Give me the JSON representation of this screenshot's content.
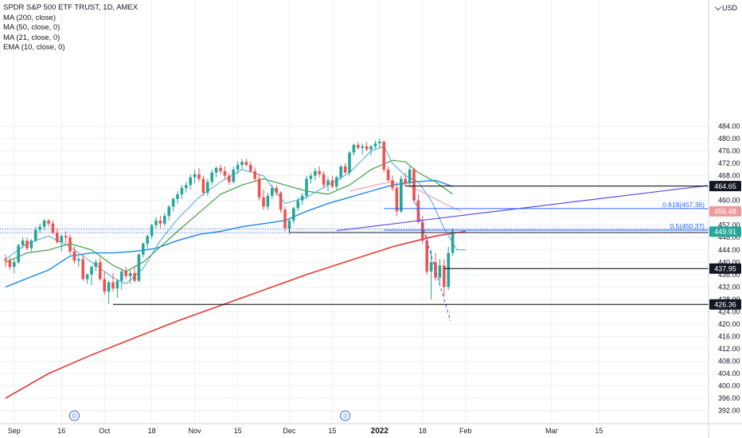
{
  "legend": {
    "title": "SPDR S&P 500 ETF TRUST, 1D, AMEX",
    "indicators": [
      "MA (200, close)",
      "MA (50, close, 0)",
      "MA (21, close, 0)",
      "EMA (10, close, 0)"
    ]
  },
  "currency": "USD",
  "colors": {
    "up": "#26a69a",
    "down": "#ef5350",
    "ma200": "#e53935",
    "ma50": "#1e88e5",
    "ma21": "#43a047",
    "ema10": "#4aa8d8",
    "trendline": "#5c4ee6",
    "fib": "#2962ff",
    "hline": "#000000",
    "grid": "#eef0f3"
  },
  "chart_data": {
    "type": "candlestick",
    "symbol": "SPY",
    "timeframe": "1D",
    "ylim": [
      390,
      488
    ],
    "y_ticks": [
      "392.00",
      "396.00",
      "400.00",
      "404.00",
      "408.00",
      "412.00",
      "416.00",
      "420.00",
      "424.00",
      "428.00",
      "432.00",
      "436.00",
      "440.00",
      "444.00",
      "448.00",
      "452.00",
      "456.00",
      "460.00",
      "464.00",
      "468.00",
      "472.00",
      "476.00",
      "480.00",
      "484.00"
    ],
    "x_ticks": [
      {
        "label": "Sep",
        "day": 2,
        "bold": false
      },
      {
        "label": "16",
        "day": 13,
        "bold": false
      },
      {
        "label": "Oct",
        "day": 23,
        "bold": false
      },
      {
        "label": "18",
        "day": 34,
        "bold": false
      },
      {
        "label": "Nov",
        "day": 44,
        "bold": false
      },
      {
        "label": "15",
        "day": 54,
        "bold": false
      },
      {
        "label": "Dec",
        "day": 66,
        "bold": false
      },
      {
        "label": "15",
        "day": 76,
        "bold": false
      },
      {
        "label": "2022",
        "day": 87,
        "bold": true
      },
      {
        "label": "18",
        "day": 97,
        "bold": false
      },
      {
        "label": "Feb",
        "day": 107,
        "bold": false
      },
      {
        "label": "Mar",
        "day": 127,
        "bold": false
      },
      {
        "label": "15",
        "day": 138,
        "bold": false
      }
    ],
    "candles": [
      [
        441,
        442.5,
        438.5,
        440.5
      ],
      [
        440.5,
        441.5,
        437.5,
        438.5
      ],
      [
        438.5,
        441,
        436.5,
        440
      ],
      [
        440,
        446,
        439.5,
        445.5
      ],
      [
        445.5,
        448,
        444.5,
        447
      ],
      [
        447,
        448,
        444,
        444.5
      ],
      [
        444.5,
        447.5,
        443.5,
        447
      ],
      [
        447,
        451.5,
        446.5,
        450.5
      ],
      [
        450.5,
        452.5,
        449.5,
        451.5
      ],
      [
        451.5,
        454,
        450.5,
        453.5
      ],
      [
        453.5,
        454,
        451.5,
        452.5
      ],
      [
        452.5,
        453.5,
        449,
        449.5
      ],
      [
        449.5,
        451,
        446,
        446.5
      ],
      [
        446.5,
        449,
        443.5,
        448.5
      ],
      [
        448.5,
        450,
        446,
        448
      ],
      [
        448,
        449,
        442.5,
        443.5
      ],
      [
        443.5,
        445,
        439.5,
        440.5
      ],
      [
        440.5,
        442,
        438.5,
        441
      ],
      [
        441,
        442.5,
        434,
        434.5
      ],
      [
        434.5,
        436.5,
        433,
        436
      ],
      [
        436,
        439,
        432.5,
        438.5
      ],
      [
        438.5,
        441,
        437,
        440
      ],
      [
        440,
        441.5,
        434,
        434.5
      ],
      [
        434.5,
        437,
        429.5,
        430.5
      ],
      [
        430.5,
        434,
        426.5,
        433.5
      ],
      [
        433.5,
        436.5,
        430.5,
        431.5
      ],
      [
        431.5,
        434.5,
        428.5,
        434
      ],
      [
        434,
        437.5,
        431,
        437
      ],
      [
        437,
        438.5,
        434.5,
        435.5
      ],
      [
        435.5,
        437.5,
        433,
        436.5
      ],
      [
        436.5,
        439,
        433.5,
        434
      ],
      [
        434,
        443,
        433.5,
        442.5
      ],
      [
        442.5,
        446.5,
        441.5,
        446
      ],
      [
        446,
        449,
        444.5,
        448.5
      ],
      [
        448.5,
        452.5,
        447.5,
        452
      ],
      [
        452,
        454.5,
        451,
        453.5
      ],
      [
        453.5,
        455,
        451,
        452.5
      ],
      [
        452.5,
        456,
        451.5,
        455
      ],
      [
        455,
        458.5,
        453.5,
        458
      ],
      [
        458,
        461,
        456.5,
        460.5
      ],
      [
        460.5,
        463,
        459,
        462
      ],
      [
        462,
        465,
        460.5,
        464
      ],
      [
        464,
        466,
        462.5,
        465
      ],
      [
        465,
        468.5,
        463.5,
        467.5
      ],
      [
        467.5,
        470,
        465.5,
        468.5
      ],
      [
        468.5,
        470.5,
        466,
        467
      ],
      [
        467,
        468,
        461.5,
        462.5
      ],
      [
        462.5,
        467,
        461.5,
        466
      ],
      [
        466,
        470,
        465,
        469
      ],
      [
        469,
        471,
        467.5,
        470.5
      ],
      [
        470.5,
        471.5,
        468.5,
        469.5
      ],
      [
        469.5,
        471,
        467,
        468
      ],
      [
        468,
        469,
        465,
        466
      ],
      [
        466,
        471,
        465.5,
        470
      ],
      [
        470,
        472.5,
        468.5,
        471.5
      ],
      [
        471.5,
        473.5,
        470,
        472.5
      ],
      [
        472.5,
        473.5,
        471,
        471.5
      ],
      [
        471.5,
        472.5,
        469,
        469.5
      ],
      [
        469.5,
        470.5,
        466,
        467
      ],
      [
        467,
        468.5,
        460,
        461
      ],
      [
        461,
        463.5,
        457,
        458
      ],
      [
        458,
        462.5,
        457,
        461.5
      ],
      [
        461.5,
        465,
        460.5,
        464
      ],
      [
        464,
        465,
        461.5,
        462.5
      ],
      [
        462.5,
        463,
        456,
        457
      ],
      [
        457,
        458,
        450,
        451
      ],
      [
        451,
        454,
        449,
        453.5
      ],
      [
        453.5,
        458,
        452.5,
        457.5
      ],
      [
        457.5,
        461,
        456.5,
        460
      ],
      [
        460,
        462.5,
        458.5,
        461.5
      ],
      [
        461.5,
        468,
        460.5,
        467
      ],
      [
        467,
        469,
        465.5,
        468
      ],
      [
        468,
        470.5,
        466.5,
        469.5
      ],
      [
        469.5,
        471,
        467.5,
        468.5
      ],
      [
        468.5,
        469.5,
        464,
        465
      ],
      [
        465,
        467.5,
        463,
        466.5
      ],
      [
        466.5,
        468,
        464,
        464.5
      ],
      [
        464.5,
        468,
        463.5,
        467.5
      ],
      [
        467.5,
        471.5,
        466.5,
        471
      ],
      [
        471,
        472,
        468.5,
        469
      ],
      [
        469,
        476,
        468,
        475.5
      ],
      [
        475.5,
        478.5,
        474.5,
        478
      ],
      [
        478,
        479,
        476.5,
        477
      ],
      [
        477,
        478.5,
        475,
        477.5
      ],
      [
        477.5,
        479,
        476,
        476.5
      ],
      [
        476.5,
        478,
        474.5,
        477.5
      ],
      [
        477.5,
        479.5,
        476.5,
        478.5
      ],
      [
        478.5,
        480,
        477,
        479
      ],
      [
        479,
        479.5,
        469,
        470
      ],
      [
        470,
        471,
        466,
        466.5
      ],
      [
        466.5,
        468,
        463,
        464
      ],
      [
        464,
        465,
        455,
        456.5
      ],
      [
        456.5,
        468,
        456,
        467
      ],
      [
        467,
        469,
        465,
        465.5
      ],
      [
        465.5,
        471,
        464.5,
        470
      ],
      [
        470,
        470.5,
        459,
        460
      ],
      [
        460,
        462,
        452.5,
        453
      ],
      [
        453,
        455,
        446,
        447
      ],
      [
        447,
        449,
        436,
        437
      ],
      [
        437,
        444,
        428,
        440
      ],
      [
        440,
        443,
        434,
        435
      ],
      [
        435,
        441,
        433,
        439
      ],
      [
        439,
        441,
        429,
        432
      ],
      [
        432,
        445,
        431,
        443
      ],
      [
        443,
        451,
        442,
        450
      ]
    ],
    "ma200": [
      [
        0,
        396
      ],
      [
        10,
        404
      ],
      [
        20,
        410
      ],
      [
        30,
        415.5
      ],
      [
        40,
        421
      ],
      [
        50,
        426
      ],
      [
        60,
        431
      ],
      [
        70,
        436
      ],
      [
        80,
        440.5
      ],
      [
        90,
        445
      ],
      [
        100,
        448.5
      ],
      [
        107,
        450
      ]
    ],
    "ma50": [
      [
        0,
        432
      ],
      [
        10,
        437.5
      ],
      [
        15,
        442
      ],
      [
        20,
        443
      ],
      [
        25,
        443
      ],
      [
        30,
        443.5
      ],
      [
        35,
        444.5
      ],
      [
        40,
        447
      ],
      [
        45,
        449
      ],
      [
        50,
        450
      ],
      [
        55,
        451.5
      ],
      [
        60,
        452.5
      ],
      [
        65,
        453.5
      ],
      [
        70,
        456.5
      ],
      [
        75,
        459
      ],
      [
        80,
        461
      ],
      [
        85,
        463
      ],
      [
        90,
        465
      ],
      [
        95,
        466
      ],
      [
        100,
        466.5
      ],
      [
        104,
        464.5
      ]
    ],
    "ma21": [
      [
        0,
        440
      ],
      [
        5,
        443
      ],
      [
        10,
        444
      ],
      [
        15,
        446
      ],
      [
        20,
        444
      ],
      [
        25,
        439
      ],
      [
        28,
        437
      ],
      [
        32,
        440
      ],
      [
        36,
        445
      ],
      [
        40,
        450
      ],
      [
        45,
        456
      ],
      [
        50,
        462
      ],
      [
        55,
        465
      ],
      [
        60,
        467
      ],
      [
        65,
        465
      ],
      [
        70,
        463
      ],
      [
        75,
        462
      ],
      [
        80,
        465
      ],
      [
        85,
        470
      ],
      [
        90,
        473
      ],
      [
        93,
        472.5
      ],
      [
        96,
        469
      ],
      [
        100,
        466
      ],
      [
        104,
        462
      ]
    ],
    "ema10": [
      [
        0,
        441
      ],
      [
        5,
        446
      ],
      [
        10,
        448.5
      ],
      [
        15,
        445
      ],
      [
        20,
        440
      ],
      [
        25,
        435
      ],
      [
        28,
        433
      ],
      [
        32,
        438
      ],
      [
        36,
        447
      ],
      [
        40,
        454
      ],
      [
        45,
        461
      ],
      [
        50,
        466
      ],
      [
        55,
        470
      ],
      [
        60,
        468
      ],
      [
        65,
        459
      ],
      [
        70,
        461
      ],
      [
        75,
        465
      ],
      [
        80,
        469
      ],
      [
        85,
        476
      ],
      [
        88,
        477.5
      ],
      [
        90,
        472
      ],
      [
        93,
        468
      ],
      [
        96,
        466
      ],
      [
        99,
        460
      ],
      [
        102,
        451
      ],
      [
        105,
        444
      ],
      [
        107,
        444
      ]
    ],
    "horizontal_lines": [
      {
        "price": 464.65,
        "label": "464.65",
        "day_start": 93
      },
      {
        "price": 437.95,
        "label": "437.95",
        "day_start": 102
      },
      {
        "price": 426.36,
        "label": "426.36",
        "day_start": 25
      }
    ],
    "fibonacci": [
      {
        "level": "0.618",
        "price": 457.36,
        "label": "0.618(457.36)"
      },
      {
        "level": "0.5",
        "price": 450.37,
        "label": "0.5(450.37)"
      }
    ],
    "price_badges": [
      {
        "label": "456.48",
        "price": 456.48,
        "color": "#ef9a9a"
      },
      {
        "label": "449.91",
        "price": 449.91,
        "color": "#26a69a"
      }
    ],
    "dividend_markers": [
      {
        "label": "D",
        "day": 16
      },
      {
        "label": "D",
        "day": 79
      }
    ]
  }
}
